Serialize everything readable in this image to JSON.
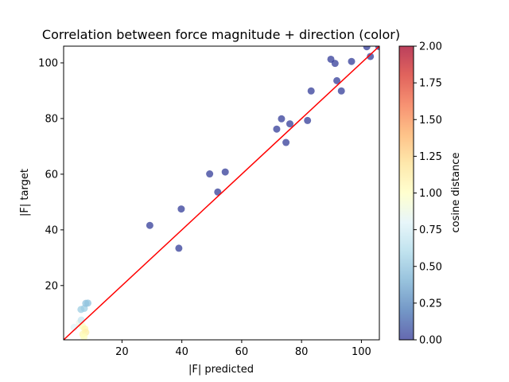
{
  "chart_data": {
    "type": "scatter",
    "title": "Correlation between force magnitude + direction (color)",
    "xlabel": "|F| predicted",
    "ylabel": "|F| target",
    "xlim": [
      0.5,
      106
    ],
    "ylim": [
      0.5,
      106
    ],
    "xticks": [
      20,
      40,
      60,
      80,
      100
    ],
    "yticks": [
      20,
      40,
      60,
      80,
      100
    ],
    "grid": false,
    "colorbar": {
      "label": "cosine distance",
      "range": [
        0,
        2
      ],
      "ticks": [
        "0.00",
        "0.25",
        "0.50",
        "0.75",
        "1.00",
        "1.25",
        "1.50",
        "1.75",
        "2.00"
      ],
      "colormap": "RdYlBu_r"
    },
    "reference_line": {
      "x": [
        0.5,
        106
      ],
      "y": [
        0.5,
        106
      ],
      "color": "#ff0000"
    },
    "points": [
      {
        "x": 29.3,
        "y": 41.6,
        "c": 0.02
      },
      {
        "x": 39.0,
        "y": 33.4,
        "c": 0.02
      },
      {
        "x": 39.8,
        "y": 47.5,
        "c": 0.02
      },
      {
        "x": 49.3,
        "y": 60.1,
        "c": 0.02
      },
      {
        "x": 52.0,
        "y": 53.6,
        "c": 0.02
      },
      {
        "x": 54.5,
        "y": 60.8,
        "c": 0.02
      },
      {
        "x": 71.7,
        "y": 76.2,
        "c": 0.02
      },
      {
        "x": 73.3,
        "y": 79.9,
        "c": 0.02
      },
      {
        "x": 74.8,
        "y": 71.4,
        "c": 0.02
      },
      {
        "x": 76.1,
        "y": 78.1,
        "c": 0.02
      },
      {
        "x": 82.0,
        "y": 79.3,
        "c": 0.02
      },
      {
        "x": 83.2,
        "y": 89.9,
        "c": 0.02
      },
      {
        "x": 89.8,
        "y": 101.3,
        "c": 0.02
      },
      {
        "x": 91.2,
        "y": 99.8,
        "c": 0.02
      },
      {
        "x": 91.8,
        "y": 93.6,
        "c": 0.02
      },
      {
        "x": 93.3,
        "y": 89.9,
        "c": 0.02
      },
      {
        "x": 96.7,
        "y": 100.5,
        "c": 0.02
      },
      {
        "x": 101.8,
        "y": 105.8,
        "c": 0.02
      },
      {
        "x": 103.0,
        "y": 102.3,
        "c": 0.02
      },
      {
        "x": 105.8,
        "y": 105.9,
        "c": 0.02
      },
      {
        "x": 6.3,
        "y": 11.4,
        "c": 0.55
      },
      {
        "x": 7.4,
        "y": 11.8,
        "c": 0.55
      },
      {
        "x": 7.9,
        "y": 13.6,
        "c": 0.5
      },
      {
        "x": 8.6,
        "y": 13.7,
        "c": 0.5
      },
      {
        "x": 4.0,
        "y": 5.0,
        "c": 0.8
      },
      {
        "x": 5.8,
        "y": 6.6,
        "c": 0.85
      },
      {
        "x": 6.4,
        "y": 7.6,
        "c": 0.7
      },
      {
        "x": 6.8,
        "y": 5.4,
        "c": 1.0
      },
      {
        "x": 7.6,
        "y": 4.4,
        "c": 1.05
      },
      {
        "x": 7.9,
        "y": 3.2,
        "c": 1.1
      },
      {
        "x": 6.9,
        "y": 2.5,
        "c": 1.05
      },
      {
        "x": 7.3,
        "y": 1.5,
        "c": 1.0
      }
    ]
  }
}
